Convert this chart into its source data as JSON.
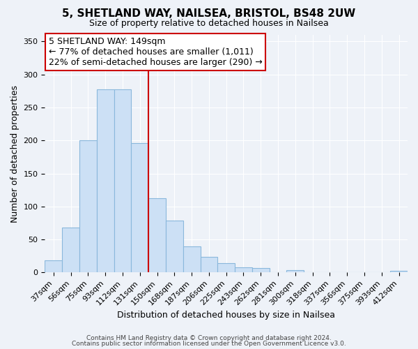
{
  "title": "5, SHETLAND WAY, NAILSEA, BRISTOL, BS48 2UW",
  "subtitle": "Size of property relative to detached houses in Nailsea",
  "xlabel": "Distribution of detached houses by size in Nailsea",
  "ylabel": "Number of detached properties",
  "categories": [
    "37sqm",
    "56sqm",
    "75sqm",
    "93sqm",
    "112sqm",
    "131sqm",
    "150sqm",
    "168sqm",
    "187sqm",
    "206sqm",
    "225sqm",
    "243sqm",
    "262sqm",
    "281sqm",
    "300sqm",
    "318sqm",
    "337sqm",
    "356sqm",
    "375sqm",
    "393sqm",
    "412sqm"
  ],
  "values": [
    18,
    68,
    200,
    277,
    277,
    196,
    113,
    79,
    40,
    24,
    14,
    8,
    7,
    0,
    3,
    0,
    0,
    0,
    0,
    0,
    2
  ],
  "bar_color": "#cce0f5",
  "bar_edge_color": "#8ab8dc",
  "highlight_bar_index": -1,
  "highlight_edge_color": "#cc0000",
  "annotation_box_edge_color": "#cc0000",
  "annotation_line1": "5 SHETLAND WAY: 149sqm",
  "annotation_line2": "← 77% of detached houses are smaller (1,011)",
  "annotation_line3": "22% of semi-detached houses are larger (290) →",
  "red_line_after_index": 5,
  "ylim": [
    0,
    360
  ],
  "yticks": [
    0,
    50,
    100,
    150,
    200,
    250,
    300,
    350
  ],
  "footer1": "Contains HM Land Registry data © Crown copyright and database right 2024.",
  "footer2": "Contains public sector information licensed under the Open Government Licence v3.0.",
  "background_color": "#eef2f8",
  "plot_bg_color": "#eef2f8",
  "grid_color": "#ffffff",
  "title_fontsize": 11,
  "subtitle_fontsize": 9,
  "axis_label_fontsize": 9,
  "tick_fontsize": 8,
  "annotation_fontsize": 9,
  "footer_fontsize": 6.5
}
